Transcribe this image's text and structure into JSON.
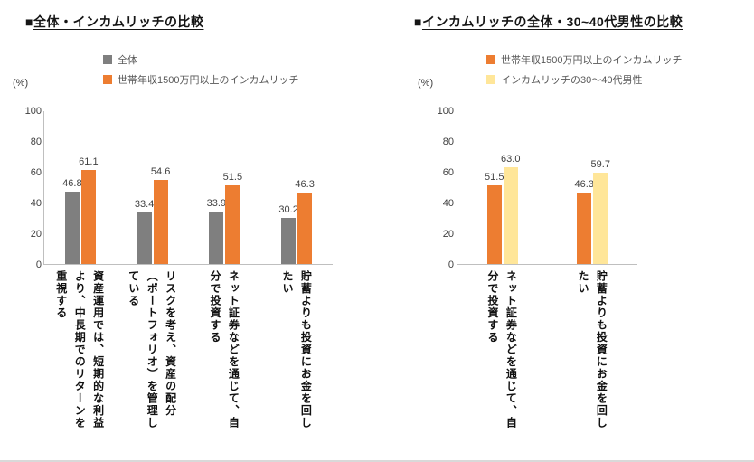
{
  "page": {
    "background": "#ffffff",
    "edge_color": "#d9d9d9"
  },
  "chart_data": [
    {
      "type": "bar",
      "title_bullet": "■",
      "title": "全体・インカムリッチの比較",
      "unit": "(%)",
      "ylim": [
        0,
        100
      ],
      "y_ticks": [
        100,
        80,
        60,
        40,
        20,
        0
      ],
      "grid": false,
      "legend_position": "top",
      "categories": [
        "資産運用では、短期的な利益より、中長期でのリターンを重視する",
        "リスクを考え、資産の配分（ポートフォリオ）を管理している",
        "ネット証券などを通じて、自分で投資する",
        "貯蓄よりも投資にお金を回したい"
      ],
      "series": [
        {
          "name": "全体",
          "color": "#7F7F7F",
          "values": [
            46.8,
            33.4,
            33.9,
            30.2
          ]
        },
        {
          "name": "世帯年収1500万円以上のインカムリッチ",
          "color": "#ED7D31",
          "values": [
            61.1,
            54.6,
            51.5,
            46.3
          ]
        }
      ]
    },
    {
      "type": "bar",
      "title_bullet": "■",
      "title": "インカムリッチの全体・30~40代男性の比較",
      "unit": "(%)",
      "ylim": [
        0,
        100
      ],
      "y_ticks": [
        100,
        80,
        60,
        40,
        20,
        0
      ],
      "grid": false,
      "legend_position": "top",
      "categories": [
        "ネット証券などを通じて、自分で投資する",
        "貯蓄よりも投資にお金を回したい"
      ],
      "series": [
        {
          "name": "世帯年収1500万円以上のインカムリッチ",
          "color": "#ED7D31",
          "values": [
            51.5,
            46.3
          ]
        },
        {
          "name": "インカムリッチの30～40代男性",
          "color": "#FFE699",
          "values": [
            63.0,
            59.7
          ]
        }
      ]
    }
  ]
}
